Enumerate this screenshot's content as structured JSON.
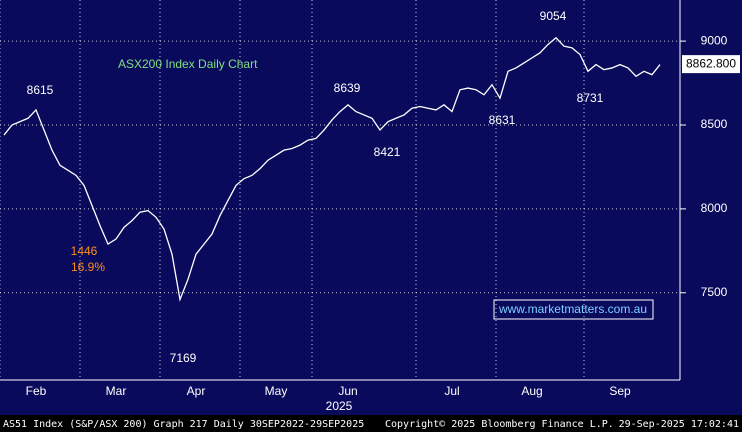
{
  "chart_data": {
    "type": "line",
    "title": "ASX200 Index Daily Chart",
    "watermark": "www.marketmatters.com.au",
    "x_axis_label": "2025",
    "categories": [
      null,
      null,
      null,
      null,
      "Feb",
      null,
      null,
      null,
      null,
      null,
      null,
      null,
      null,
      null,
      "Mar",
      null,
      null,
      null,
      null,
      null,
      null,
      null,
      null,
      null,
      "Apr",
      null,
      null,
      null,
      null,
      null,
      null,
      null,
      null,
      null,
      "May",
      null,
      null,
      null,
      null,
      null,
      null,
      null,
      null,
      "Jun",
      null,
      null,
      null,
      null,
      null,
      null,
      null,
      null,
      null,
      null,
      null,
      null,
      "Jul",
      null,
      null,
      null,
      null,
      null,
      null,
      null,
      null,
      null,
      "Aug",
      null,
      null,
      null,
      null,
      null,
      null,
      null,
      null,
      null,
      null,
      "Sep",
      null,
      null,
      null,
      null,
      null
    ],
    "series": [
      {
        "name": "AS51 Index",
        "color": "#ffffff",
        "values": [
          8440,
          8500,
          8520,
          8540,
          8590,
          8470,
          8350,
          8260,
          8230,
          8200,
          8140,
          8020,
          7900,
          7790,
          7820,
          7890,
          7930,
          7980,
          7990,
          7950,
          7880,
          7730,
          7460,
          7580,
          7730,
          7790,
          7850,
          7960,
          8050,
          8140,
          8180,
          8200,
          8240,
          8290,
          8320,
          8350,
          8360,
          8380,
          8410,
          8420,
          8470,
          8530,
          8580,
          8620,
          8580,
          8560,
          8540,
          8470,
          8520,
          8540,
          8560,
          8600,
          8610,
          8600,
          8590,
          8620,
          8580,
          8710,
          8720,
          8710,
          8680,
          8740,
          8660,
          8820,
          8840,
          8870,
          8900,
          8930,
          8980,
          9020,
          8970,
          8960,
          8920,
          8820,
          8860,
          8830,
          8840,
          8860,
          8840,
          8790,
          8820,
          8800,
          8860
        ]
      }
    ],
    "annotations": [
      {
        "text": "8615",
        "color": "#ffffff"
      },
      {
        "text": "8639",
        "color": "#ffffff"
      },
      {
        "text": "8421",
        "color": "#ffffff"
      },
      {
        "text": "8631",
        "color": "#ffffff"
      },
      {
        "text": "9054",
        "color": "#ffffff"
      },
      {
        "text": "8731",
        "color": "#ffffff"
      },
      {
        "text": "7169",
        "color": "#ffffff"
      },
      {
        "text": "1446",
        "color": "#ff8c1a"
      },
      {
        "text": "16.9%",
        "color": "#ff8c1a"
      }
    ],
    "last_price": {
      "value": 8862.8,
      "label": "8862.800"
    },
    "ylim": [
      6980,
      9245
    ],
    "yticks": [
      7500,
      8000,
      8500,
      9000
    ],
    "grid": true,
    "background": "#0a0a5c",
    "footer": [
      "AS51 Index (S&P/ASX 200) Graph 217  Daily 30SEP2022-29SEP2025",
      "Copyright© 2025 Bloomberg Finance L.P.",
      "29-Sep-2025 17:02:41"
    ]
  }
}
